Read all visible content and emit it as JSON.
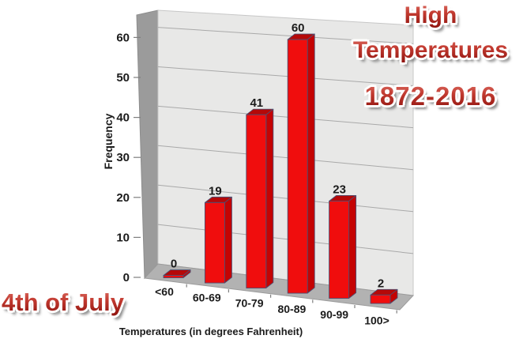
{
  "chart_data": {
    "type": "bar",
    "projection": "3d",
    "title_lines": [
      "High",
      "Temperatures",
      "1872-2016"
    ],
    "corner_label": "4th of July",
    "xlabel": "Temperatures (in degrees Fahrenheit)",
    "ylabel": "Frequency",
    "categories": [
      "<60",
      "60-69",
      "70-79",
      "80-89",
      "90-99",
      "100>"
    ],
    "values": [
      0,
      19,
      41,
      60,
      23,
      2
    ],
    "yticks": [
      0,
      10,
      20,
      30,
      40,
      50,
      60
    ],
    "ylim": [
      0,
      65
    ],
    "grid": true,
    "legend": "none",
    "colors": {
      "bar_front": "#f00d0d",
      "bar_side": "#c40303",
      "bar_top": "#b50808",
      "bar_edge": "#4e4e70",
      "back_wall": "#e8e8e7",
      "side_wall": "#9b9b9b",
      "floor": "#b2b2b2",
      "gridline": "#a9a9a9",
      "axis_text": "#1b1b1b",
      "title_red_top": "#da6a60",
      "title_red_bottom": "#8e120d"
    }
  }
}
